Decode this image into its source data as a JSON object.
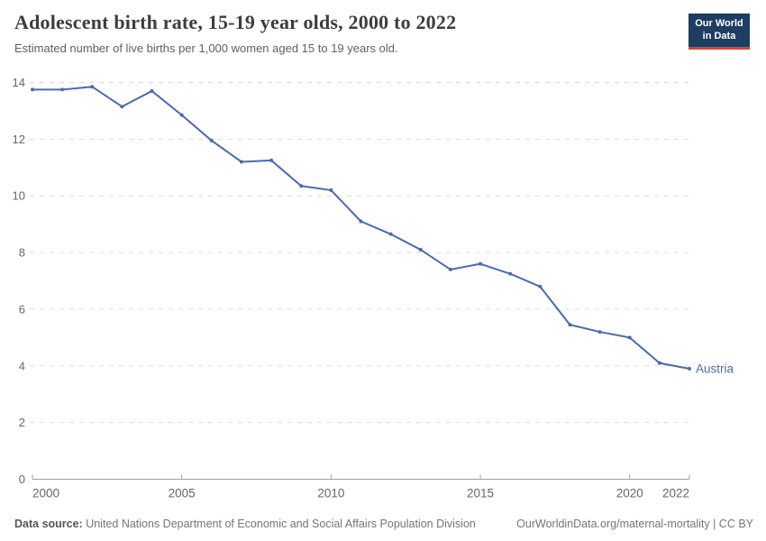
{
  "header": {
    "title": "Adolescent birth rate, 15-19 year olds, 2000 to 2022",
    "subtitle": "Estimated number of live births per 1,000 women aged 15 to 19 years old.",
    "logo": {
      "line1": "Our World",
      "line2": "in Data"
    }
  },
  "footer": {
    "source_label": "Data source:",
    "source_text": " United Nations Department of Economic and Social Affairs Population Division",
    "link_text": "OurWorldinData.org/maternal-mortality | CC BY"
  },
  "chart_data": {
    "type": "line",
    "title": "Adolescent birth rate, 15-19 year olds, 2000 to 2022",
    "subtitle": "Estimated number of live births per 1,000 women aged 15 to 19 years old.",
    "xlabel": "",
    "ylabel": "",
    "xlim": [
      2000,
      2022
    ],
    "ylim": [
      0,
      14
    ],
    "x_ticks": [
      2000,
      2005,
      2010,
      2015,
      2020,
      2022
    ],
    "y_ticks": [
      0,
      2,
      4,
      6,
      8,
      10,
      12,
      14
    ],
    "grid": "horizontal-dashed",
    "legend": "end-of-line-label",
    "series": [
      {
        "name": "Austria",
        "color": "#4b6bac",
        "x": [
          2000,
          2001,
          2002,
          2003,
          2004,
          2005,
          2006,
          2007,
          2008,
          2009,
          2010,
          2011,
          2012,
          2013,
          2014,
          2015,
          2016,
          2017,
          2018,
          2019,
          2020,
          2021,
          2022
        ],
        "values": [
          13.75,
          13.75,
          13.85,
          13.15,
          13.7,
          12.85,
          11.95,
          11.2,
          11.25,
          10.35,
          10.2,
          9.1,
          8.65,
          8.1,
          7.4,
          7.6,
          7.25,
          6.8,
          5.45,
          5.2,
          5.0,
          4.1,
          3.9
        ]
      }
    ]
  },
  "colors": {
    "line": "#4b6bac",
    "end_label": "#4b6bac",
    "grid": "#dcdcdc",
    "axis": "#a0a0a0",
    "tick_text": "#666666",
    "logo_bg": "#1d3d63",
    "logo_red": "#e04034"
  }
}
